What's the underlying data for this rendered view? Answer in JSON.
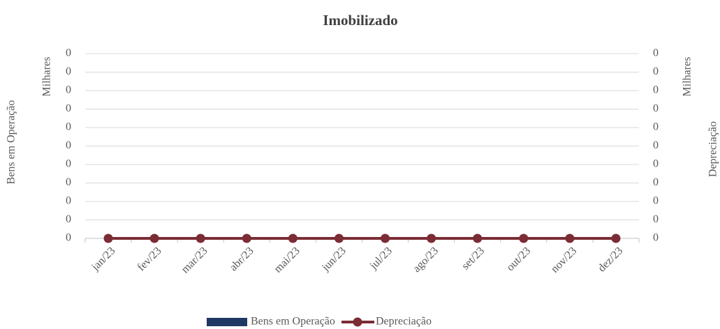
{
  "chart_data": {
    "type": "bar_line",
    "title": "Imobilizado",
    "y_label": "Bens em Operação",
    "y_display_unit": "Milhares",
    "y2_label": "Depreciação",
    "y2_display_unit": "Milhares",
    "categories": [
      "jan/23",
      "fev/23",
      "mar/23",
      "abr/23",
      "mai/23",
      "jun/23",
      "jul/23",
      "ago/23",
      "set/23",
      "out/23",
      "nov/23",
      "dez/23"
    ],
    "series": [
      {
        "name": "Bens em Operação",
        "type": "bar",
        "color": "#1f3864",
        "values": [
          0,
          0,
          0,
          0,
          0,
          0,
          0,
          0,
          0,
          0,
          0,
          0
        ]
      },
      {
        "name": "Depreciação",
        "type": "line",
        "axis": "y2",
        "color": "#7b2c34",
        "values": [
          0,
          0,
          0,
          0,
          0,
          0,
          0,
          0,
          0,
          0,
          0,
          0
        ]
      }
    ],
    "ylim": [
      0,
      1
    ],
    "yticks": [
      0,
      {
        "value": 0.1,
        "label": "0"
      },
      {
        "value": 0.2,
        "label": "0"
      },
      {
        "value": 0.3,
        "label": "0"
      },
      {
        "value": 0.4,
        "label": "0"
      },
      {
        "value": 0.5,
        "label": "0"
      },
      {
        "value": 0.6,
        "label": "0"
      },
      {
        "value": 0.7,
        "label": "0"
      },
      {
        "value": 0.8,
        "label": "0"
      },
      {
        "value": 0.9,
        "label": "0"
      },
      {
        "value": 1,
        "label": "0"
      }
    ],
    "y2lim": [
      0,
      1
    ],
    "y2ticks": [
      0,
      {
        "value": 0.1,
        "label": "0"
      },
      {
        "value": 0.2,
        "label": "0"
      },
      {
        "value": 0.3,
        "label": "0"
      },
      {
        "value": 0.4,
        "label": "0"
      },
      {
        "value": 0.5,
        "label": "0"
      },
      {
        "value": 0.6,
        "label": "0"
      },
      {
        "value": 0.7,
        "label": "0"
      },
      {
        "value": 0.8,
        "label": "0"
      },
      {
        "value": 0.9,
        "label": "0"
      },
      {
        "value": 1,
        "label": "0"
      }
    ],
    "grid": true,
    "legend": "bottom"
  }
}
